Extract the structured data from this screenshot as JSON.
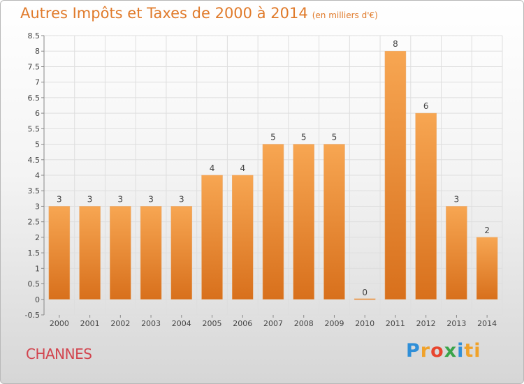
{
  "title": "Autres Impôts et Taxes de 2000 à 2014",
  "title_unit": "(en milliers d'€)",
  "commune": "CHANNES",
  "logo": {
    "text": "Proxiti",
    "letters": [
      "P",
      "r",
      "o",
      "x",
      "i",
      "t",
      "i"
    ]
  },
  "chart_data": {
    "type": "bar",
    "title": "Autres Impôts et Taxes de 2000 à 2014",
    "subtitle": "(en milliers d'€)",
    "categories": [
      "2000",
      "2001",
      "2002",
      "2003",
      "2004",
      "2005",
      "2006",
      "2007",
      "2008",
      "2009",
      "2010",
      "2011",
      "2012",
      "2013",
      "2014"
    ],
    "values": [
      3,
      3,
      3,
      3,
      3,
      4,
      4,
      5,
      5,
      5,
      0,
      8,
      6,
      3,
      2
    ],
    "data_labels": [
      "3",
      "3",
      "3",
      "3",
      "3",
      "4",
      "4",
      "5",
      "5",
      "5",
      "0",
      "8",
      "6",
      "3",
      "2"
    ],
    "ylim": [
      -0.5,
      8.5
    ],
    "yticks": [
      "-0.5",
      "0",
      "0.5",
      "1",
      "1.5",
      "2",
      "2.5",
      "3",
      "3.5",
      "4",
      "4.5",
      "5",
      "5.5",
      "6",
      "6.5",
      "7",
      "7.5",
      "8",
      "8.5"
    ],
    "ytick_values": [
      -0.5,
      0,
      0.5,
      1,
      1.5,
      2,
      2.5,
      3,
      3.5,
      4,
      4.5,
      5,
      5.5,
      6,
      6.5,
      7,
      7.5,
      8,
      8.5
    ],
    "grid": true,
    "bar_color": "#f0963c",
    "bar_color_dark": "#d8701c",
    "label_color": "#444444",
    "grid_color": "#dedede"
  }
}
